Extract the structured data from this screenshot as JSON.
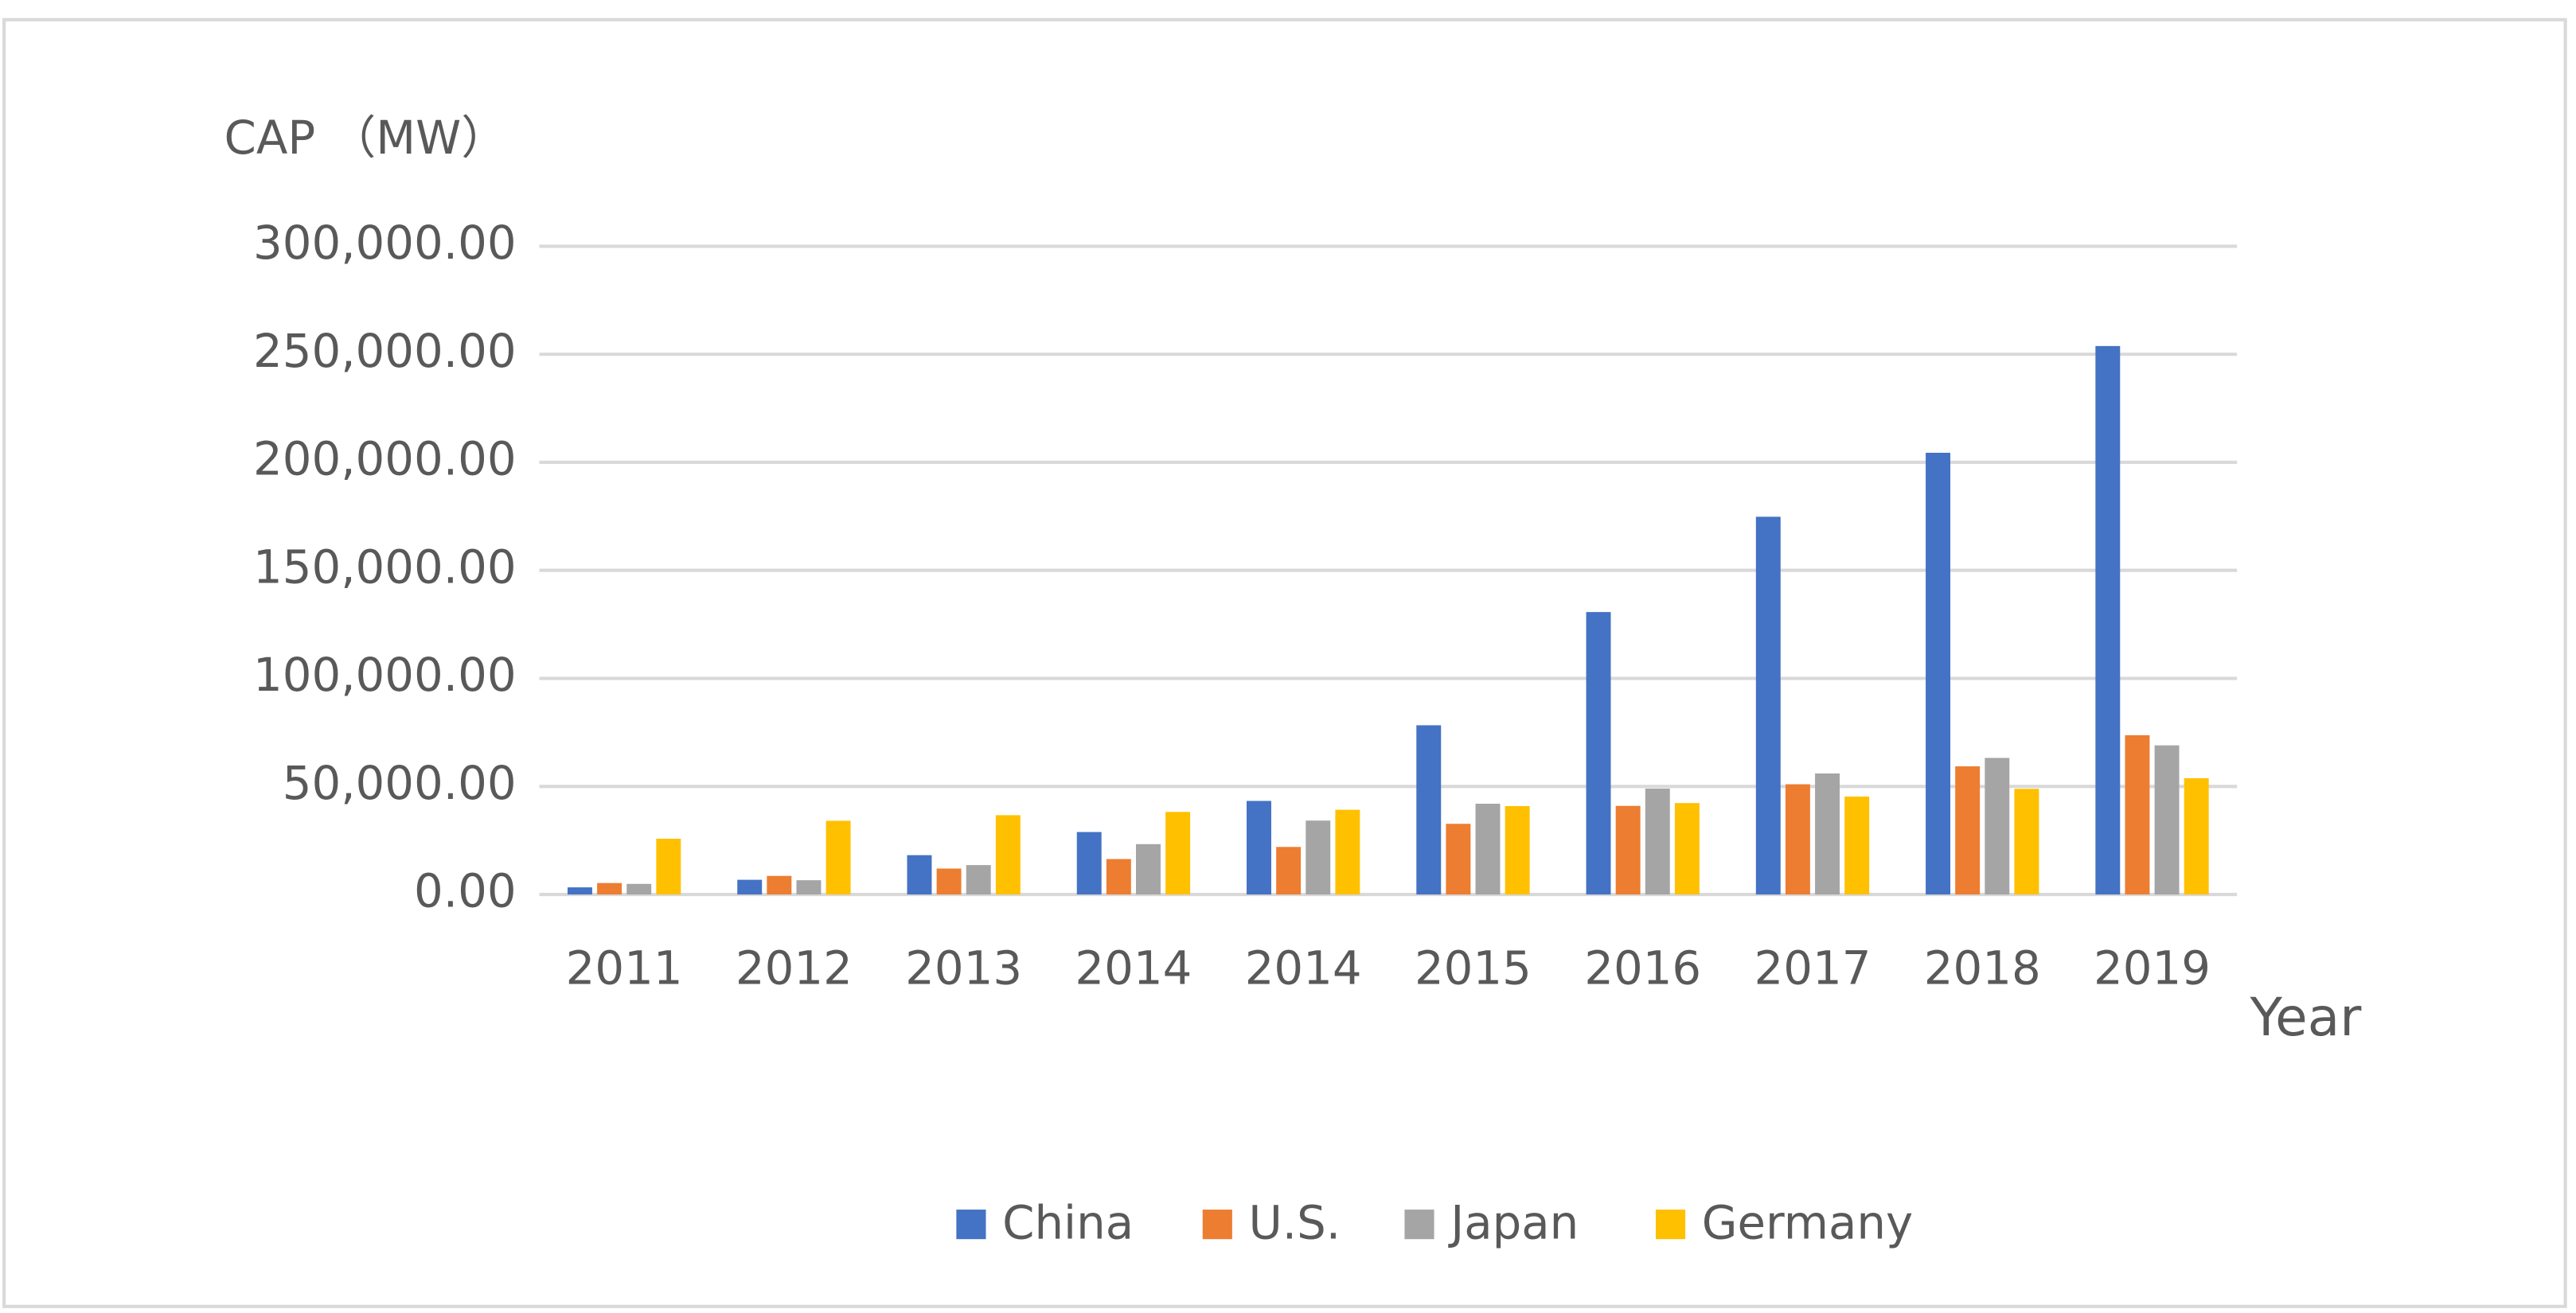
{
  "chart_data": {
    "type": "bar",
    "y_label": "CAP （MW）",
    "x_label": "Year",
    "categories": [
      "2011",
      "2012",
      "2013",
      "2014",
      "2014",
      "2015",
      "2016",
      "2017",
      "2018",
      "2019"
    ],
    "series": [
      {
        "name": "China",
        "color": "#4472c4",
        "values": [
          3300,
          6800,
          18200,
          28900,
          43300,
          78300,
          130700,
          174800,
          204400,
          253800
        ]
      },
      {
        "name": "U.S.",
        "color": "#ed7d31",
        "values": [
          5300,
          8600,
          12000,
          16400,
          22000,
          32700,
          41000,
          51000,
          59300,
          73700
        ]
      },
      {
        "name": "Japan",
        "color": "#a5a5a5",
        "values": [
          4900,
          6600,
          13600,
          23300,
          34200,
          42000,
          49000,
          56000,
          63200,
          69000
        ]
      },
      {
        "name": "Germany",
        "color": "#ffc000",
        "values": [
          25800,
          34100,
          36700,
          38200,
          39200,
          40900,
          42300,
          45300,
          48900,
          53800
        ]
      }
    ],
    "ylim": [
      0,
      300000
    ],
    "yticks": [
      {
        "value": 0,
        "label": "0.00"
      },
      {
        "value": 50000,
        "label": "50,000.00"
      },
      {
        "value": 100000,
        "label": "100,000.00"
      },
      {
        "value": 150000,
        "label": "150,000.00"
      },
      {
        "value": 200000,
        "label": "200,000.00"
      },
      {
        "value": 250000,
        "label": "250,000.00"
      },
      {
        "value": 300000,
        "label": "300,000.00"
      }
    ],
    "grid": true,
    "legend": "bottom"
  }
}
